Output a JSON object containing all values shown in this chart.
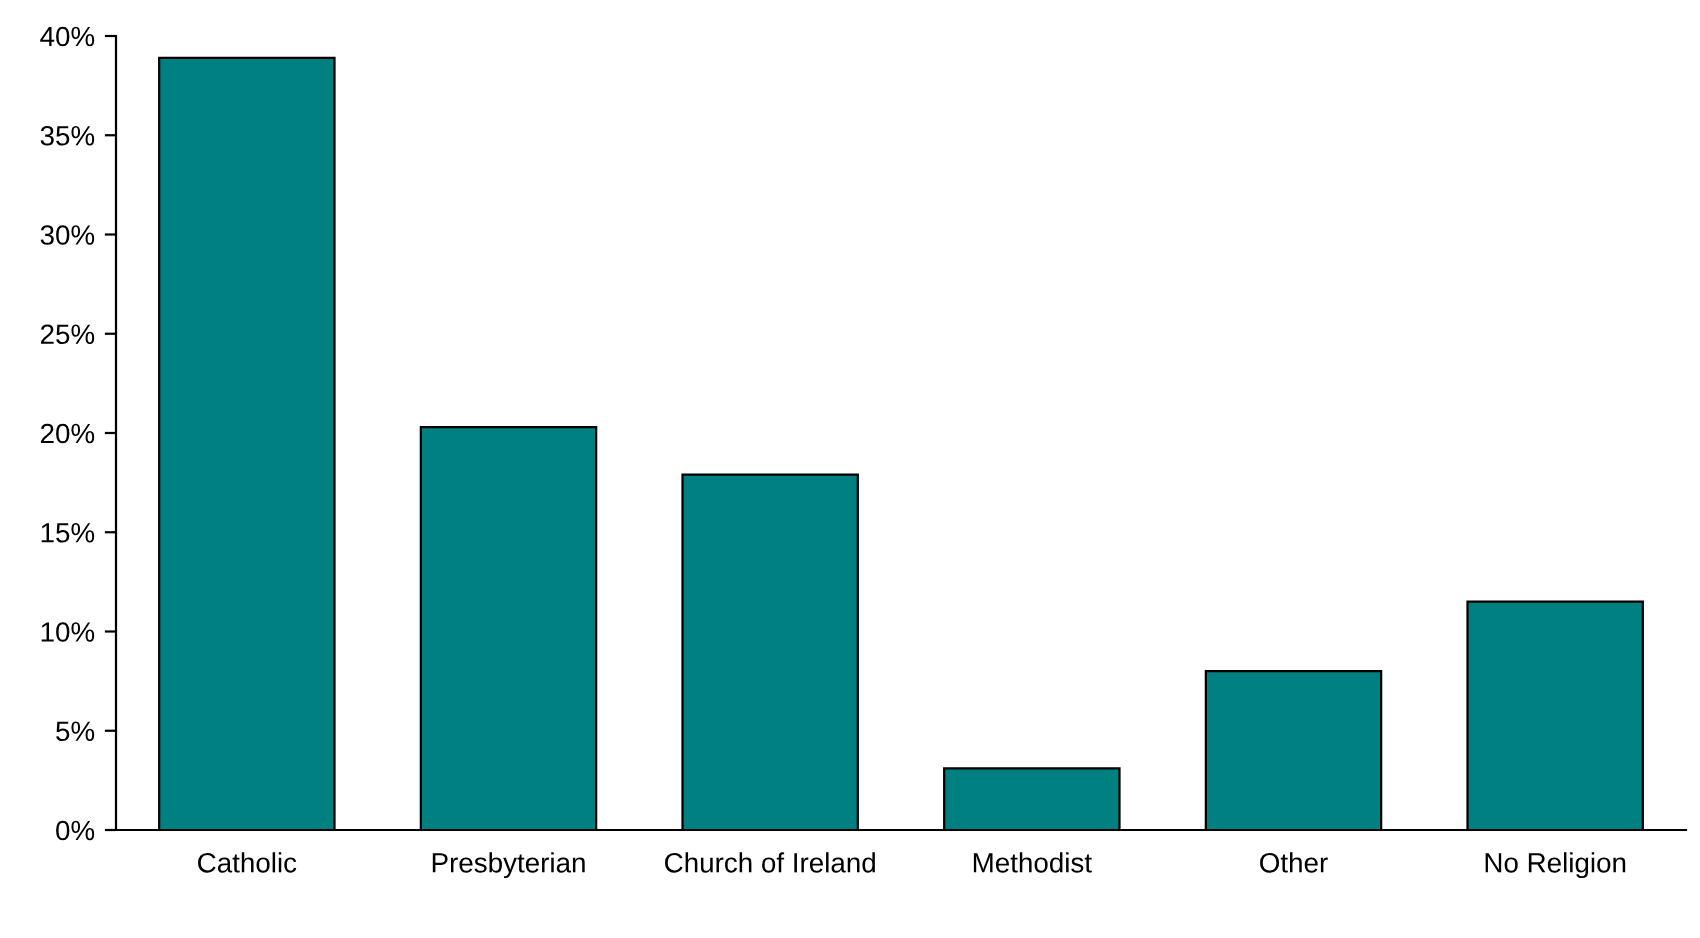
{
  "chart_data": {
    "type": "bar",
    "categories": [
      "Catholic",
      "Presbyterian",
      "Church of Ireland",
      "Methodist",
      "Other",
      "No Religion"
    ],
    "values": [
      38.9,
      20.3,
      17.9,
      3.1,
      8.0,
      11.5
    ],
    "color": "#008080",
    "ylim": [
      0,
      40
    ],
    "yticks": [
      {
        "value": 0,
        "label": "0%"
      },
      {
        "value": 5,
        "label": "5%"
      },
      {
        "value": 10,
        "label": "10%"
      },
      {
        "value": 15,
        "label": "15%"
      },
      {
        "value": 20,
        "label": "20%"
      },
      {
        "value": 25,
        "label": "25%"
      },
      {
        "value": 30,
        "label": "30%"
      },
      {
        "value": 35,
        "label": "35%"
      },
      {
        "value": 40,
        "label": "40%"
      }
    ],
    "grid": false
  }
}
